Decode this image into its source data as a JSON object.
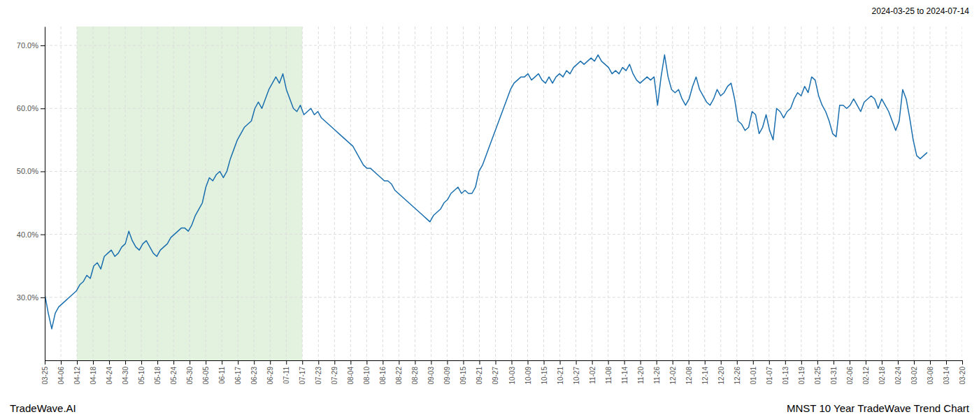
{
  "chart_data": {
    "type": "line",
    "title": "MNST 10 Year TradeWave Trend Chart",
    "subtitle": "2024-03-25 to 2024-07-14",
    "annotations": [
      "TradeWave.AI"
    ],
    "color": "#1a6faf",
    "grid": true,
    "shade": {
      "x0": 9.1929825,
      "x1": 73.5438596,
      "color": "#d6ecd2"
    },
    "xlim": [
      0,
      262
    ],
    "xticks": [
      {
        "value": 0,
        "label": "03-25"
      },
      {
        "value": 4.5964912,
        "label": "04-06"
      },
      {
        "value": 9.1929825,
        "label": "04-12"
      },
      {
        "value": 13.7894737,
        "label": "04-18"
      },
      {
        "value": 18.3859649,
        "label": "04-24"
      },
      {
        "value": 22.9824561,
        "label": "04-30"
      },
      {
        "value": 27.5789474,
        "label": "05-10"
      },
      {
        "value": 32.1754386,
        "label": "05-18"
      },
      {
        "value": 36.7719298,
        "label": "05-24"
      },
      {
        "value": 41.3684211,
        "label": "05-30"
      },
      {
        "value": 45.9649123,
        "label": "06-05"
      },
      {
        "value": 50.5614035,
        "label": "06-11"
      },
      {
        "value": 55.1578947,
        "label": "06-17"
      },
      {
        "value": 59.754386,
        "label": "06-23"
      },
      {
        "value": 64.3508772,
        "label": "06-29"
      },
      {
        "value": 68.9473684,
        "label": "07-11"
      },
      {
        "value": 73.5438596,
        "label": "07-17"
      },
      {
        "value": 78.1403509,
        "label": "07-23"
      },
      {
        "value": 82.7368421,
        "label": "07-29"
      },
      {
        "value": 87.3333333,
        "label": "08-04"
      },
      {
        "value": 91.9298246,
        "label": "08-10"
      },
      {
        "value": 96.5263158,
        "label": "08-16"
      },
      {
        "value": 101.122807,
        "label": "08-22"
      },
      {
        "value": 105.7192982,
        "label": "08-28"
      },
      {
        "value": 110.3157895,
        "label": "09-03"
      },
      {
        "value": 114.9122807,
        "label": "09-09"
      },
      {
        "value": 119.5087719,
        "label": "09-15"
      },
      {
        "value": 124.1052632,
        "label": "09-21"
      },
      {
        "value": 128.7017544,
        "label": "09-27"
      },
      {
        "value": 133.2982456,
        "label": "10-03"
      },
      {
        "value": 137.8947368,
        "label": "10-09"
      },
      {
        "value": 142.4912281,
        "label": "10-15"
      },
      {
        "value": 147.0877193,
        "label": "10-21"
      },
      {
        "value": 151.6842105,
        "label": "10-27"
      },
      {
        "value": 156.2807018,
        "label": "11-02"
      },
      {
        "value": 160.877193,
        "label": "11-08"
      },
      {
        "value": 165.4736842,
        "label": "11-14"
      },
      {
        "value": 170.0701754,
        "label": "11-20"
      },
      {
        "value": 174.6666667,
        "label": "11-26"
      },
      {
        "value": 179.2631579,
        "label": "12-02"
      },
      {
        "value": 183.8596491,
        "label": "12-08"
      },
      {
        "value": 188.4561404,
        "label": "12-14"
      },
      {
        "value": 193.0526316,
        "label": "12-20"
      },
      {
        "value": 197.6491228,
        "label": "12-26"
      },
      {
        "value": 202.245614,
        "label": "01-01"
      },
      {
        "value": 206.8421053,
        "label": "01-07"
      },
      {
        "value": 211.4385965,
        "label": "01-13"
      },
      {
        "value": 216.0350877,
        "label": "01-19"
      },
      {
        "value": 220.6315789,
        "label": "01-25"
      },
      {
        "value": 225.2280702,
        "label": "01-31"
      },
      {
        "value": 229.8245614,
        "label": "02-06"
      },
      {
        "value": 234.4210526,
        "label": "02-12"
      },
      {
        "value": 239.0175439,
        "label": "02-18"
      },
      {
        "value": 243.6140351,
        "label": "02-24"
      },
      {
        "value": 248.2105263,
        "label": "03-02"
      },
      {
        "value": 252.8070175,
        "label": "03-08"
      },
      {
        "value": 257.4035088,
        "label": "03-14"
      },
      {
        "value": 262,
        "label": "03-20"
      }
    ],
    "ylim": [
      20,
      73
    ],
    "yticks": [
      {
        "value": 30,
        "label": "30.0%"
      },
      {
        "value": 40,
        "label": "40.0%"
      },
      {
        "value": 50,
        "label": "50.0%"
      },
      {
        "value": 60,
        "label": "60.0%"
      },
      {
        "value": 70,
        "label": "70.0%"
      }
    ],
    "values": [
      30.5,
      27.5,
      25.0,
      27.5,
      28.5,
      29.0,
      29.5,
      30.0,
      30.5,
      31.0,
      32.0,
      32.5,
      33.5,
      33.0,
      35.0,
      35.5,
      34.5,
      36.5,
      37.0,
      37.5,
      36.5,
      37.0,
      38.0,
      38.5,
      40.5,
      39.0,
      38.0,
      37.5,
      38.5,
      39.0,
      38.0,
      37.0,
      36.5,
      37.5,
      38.0,
      38.5,
      39.5,
      40.0,
      40.5,
      41.0,
      41.0,
      40.5,
      41.5,
      43.0,
      44.0,
      45.0,
      47.5,
      49.0,
      48.5,
      49.5,
      50.0,
      49.0,
      50.0,
      52.0,
      53.5,
      55.0,
      56.0,
      57.0,
      57.5,
      58.0,
      60.0,
      61.0,
      60.0,
      61.5,
      63.0,
      64.0,
      65.0,
      64.0,
      65.5,
      63.0,
      61.5,
      60.0,
      59.5,
      60.5,
      59.0,
      59.5,
      60.0,
      59.0,
      59.5,
      58.5,
      58.0,
      57.5,
      57.0,
      56.5,
      56.0,
      55.5,
      55.0,
      54.5,
      54.0,
      53.0,
      52.0,
      51.0,
      50.5,
      50.5,
      50.0,
      49.5,
      49.0,
      48.5,
      48.5,
      48.0,
      47.0,
      46.5,
      46.0,
      45.5,
      45.0,
      44.5,
      44.0,
      43.5,
      43.0,
      42.5,
      42.0,
      43.0,
      43.5,
      44.0,
      45.0,
      45.5,
      46.5,
      47.0,
      47.5,
      46.5,
      47.0,
      46.5,
      46.5,
      47.5,
      50.0,
      51.0,
      52.5,
      54.0,
      55.5,
      57.0,
      58.5,
      60.0,
      61.5,
      63.0,
      64.0,
      64.5,
      65.0,
      65.0,
      65.5,
      64.5,
      65.0,
      65.5,
      64.5,
      64.0,
      65.0,
      64.0,
      65.0,
      65.5,
      65.0,
      66.0,
      65.5,
      66.5,
      67.0,
      67.5,
      67.0,
      67.5,
      68.0,
      67.5,
      68.5,
      67.5,
      67.0,
      66.5,
      65.5,
      66.0,
      65.5,
      66.5,
      66.0,
      67.0,
      65.5,
      64.5,
      64.0,
      64.5,
      65.0,
      64.5,
      65.0,
      60.5,
      65.0,
      68.5,
      65.0,
      63.0,
      62.5,
      63.0,
      61.5,
      60.5,
      61.5,
      63.5,
      65.0,
      63.0,
      62.0,
      61.0,
      60.5,
      61.5,
      63.0,
      62.0,
      62.5,
      63.5,
      64.0,
      61.5,
      58.0,
      57.5,
      56.5,
      57.0,
      59.5,
      59.0,
      56.0,
      57.0,
      59.0,
      56.5,
      55.0,
      60.0,
      59.5,
      58.5,
      59.5,
      60.0,
      61.5,
      62.5,
      62.0,
      63.5,
      62.5,
      65.0,
      64.5,
      62.0,
      60.5,
      59.5,
      58.0,
      56.0,
      55.5,
      60.5,
      60.5,
      60.0,
      60.5,
      61.5,
      60.5,
      59.5,
      61.0,
      61.5,
      62.0,
      61.5,
      60.0,
      61.5,
      60.5,
      59.5,
      58.0,
      56.5,
      58.0,
      63.0,
      61.5,
      58.5,
      55.0,
      52.5,
      52.0,
      52.5,
      53.0
    ]
  }
}
